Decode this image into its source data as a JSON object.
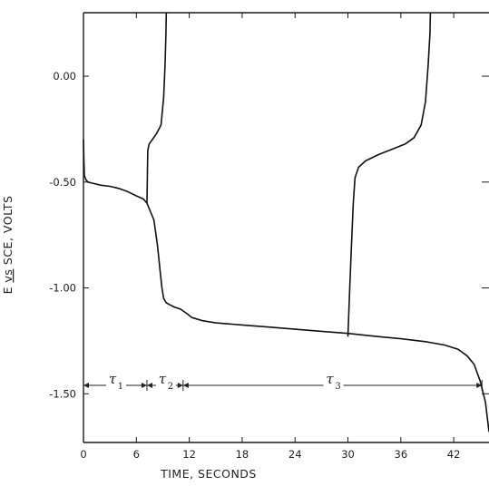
{
  "chart_data": {
    "type": "line",
    "xlabel": "TIME, SECONDS",
    "ylabel_parts": [
      "E ",
      "vs",
      " SCE, VOLTS"
    ],
    "xlim": [
      0,
      46
    ],
    "ylim": [
      -1.73,
      0.3
    ],
    "xticks": [
      0,
      6,
      12,
      18,
      24,
      30,
      36,
      42
    ],
    "xtick_labels": [
      "0",
      "6",
      "12",
      "18",
      "24",
      "30",
      "36",
      "42"
    ],
    "yticks": [
      0.0,
      -0.5,
      -1.0,
      -1.5
    ],
    "ytick_labels": [
      "0.00",
      "-0.50",
      "-1.00",
      "-1.50"
    ],
    "series": [
      {
        "points": [
          [
            0,
            -0.3
          ],
          [
            0.05,
            -0.4
          ],
          [
            0.1,
            -0.47
          ],
          [
            0.3,
            -0.49
          ],
          [
            0.5,
            -0.5
          ],
          [
            1.0,
            -0.505
          ],
          [
            2.0,
            -0.515
          ],
          [
            3.0,
            -0.52
          ],
          [
            4.0,
            -0.53
          ],
          [
            5.0,
            -0.545
          ],
          [
            6.0,
            -0.565
          ],
          [
            6.8,
            -0.58
          ],
          [
            7.2,
            -0.6
          ],
          [
            7.6,
            -0.64
          ],
          [
            8.0,
            -0.68
          ],
          [
            8.4,
            -0.8
          ],
          [
            8.7,
            -0.92
          ],
          [
            8.9,
            -1.0
          ],
          [
            9.1,
            -1.05
          ],
          [
            9.4,
            -1.07
          ],
          [
            9.8,
            -1.08
          ],
          [
            10.3,
            -1.09
          ],
          [
            11.0,
            -1.1
          ],
          [
            11.7,
            -1.12
          ],
          [
            12.3,
            -1.14
          ],
          [
            13.5,
            -1.155
          ],
          [
            15.0,
            -1.165
          ],
          [
            18.0,
            -1.175
          ],
          [
            21.0,
            -1.185
          ],
          [
            24.0,
            -1.195
          ],
          [
            27.0,
            -1.205
          ],
          [
            30.0,
            -1.215
          ],
          [
            33.0,
            -1.228
          ],
          [
            36.0,
            -1.24
          ],
          [
            39.0,
            -1.255
          ],
          [
            41.0,
            -1.27
          ],
          [
            42.5,
            -1.29
          ],
          [
            43.5,
            -1.32
          ],
          [
            44.3,
            -1.36
          ],
          [
            45.0,
            -1.44
          ],
          [
            45.6,
            -1.54
          ],
          [
            46.0,
            -1.68
          ]
        ]
      },
      {
        "points": [
          [
            7.2,
            -0.6
          ],
          [
            7.25,
            -0.45
          ],
          [
            7.3,
            -0.35
          ],
          [
            7.45,
            -0.32
          ],
          [
            7.8,
            -0.3
          ],
          [
            8.3,
            -0.27
          ],
          [
            8.8,
            -0.23
          ],
          [
            9.1,
            -0.1
          ],
          [
            9.25,
            0.05
          ],
          [
            9.35,
            0.2
          ],
          [
            9.4,
            0.3
          ]
        ]
      },
      {
        "points": [
          [
            30.0,
            -1.23
          ],
          [
            30.2,
            -1.0
          ],
          [
            30.4,
            -0.8
          ],
          [
            30.6,
            -0.6
          ],
          [
            30.8,
            -0.48
          ],
          [
            31.2,
            -0.43
          ],
          [
            32.0,
            -0.4
          ],
          [
            33.5,
            -0.37
          ],
          [
            35.0,
            -0.345
          ],
          [
            36.5,
            -0.32
          ],
          [
            37.5,
            -0.29
          ],
          [
            38.3,
            -0.23
          ],
          [
            38.8,
            -0.12
          ],
          [
            39.1,
            0.05
          ],
          [
            39.3,
            0.2
          ],
          [
            39.35,
            0.3
          ]
        ]
      }
    ],
    "intervals": {
      "y": -1.46,
      "markers": [
        0,
        7.2,
        11.3,
        45.2
      ],
      "labels": [
        {
          "symbol": "τ",
          "sub": "1",
          "x": 7.0
        },
        {
          "symbol": "τ",
          "sub": "2",
          "x": 11.0
        },
        {
          "symbol": "τ",
          "sub": "3",
          "x": 41.0
        }
      ]
    }
  }
}
